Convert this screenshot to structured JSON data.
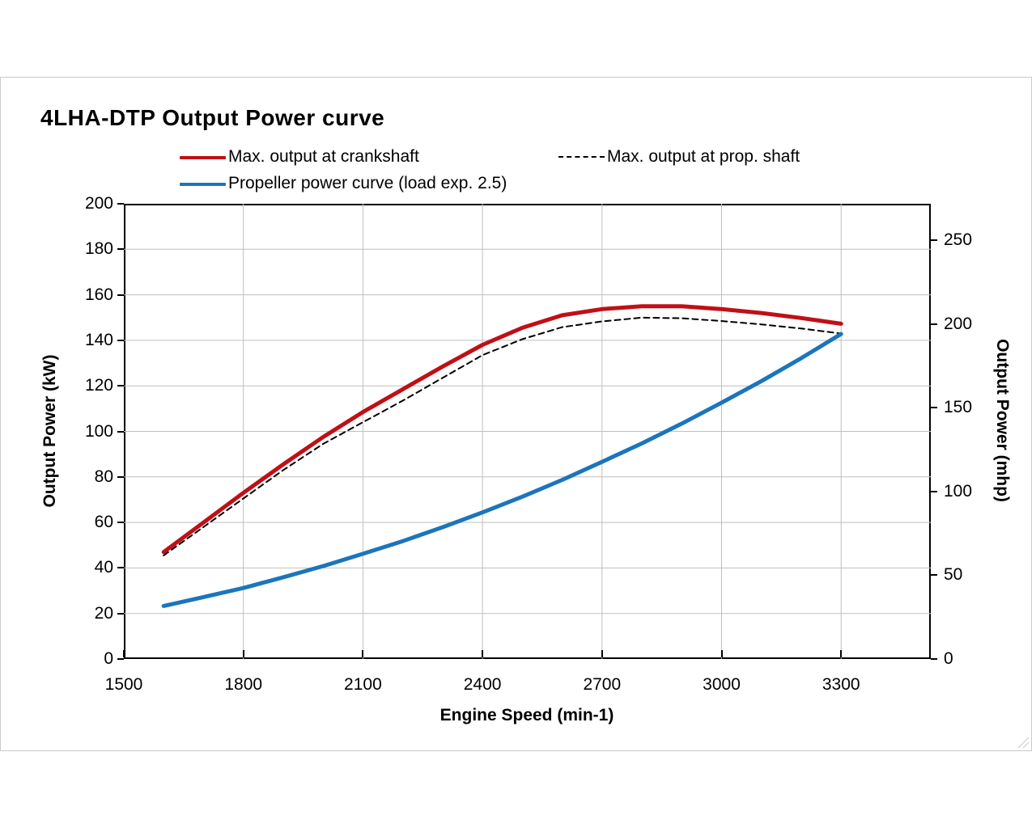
{
  "title": "4LHA-DTP Output Power curve",
  "colors": {
    "crankshaft_red": "#bf1016",
    "prop_shaft_black": "#000000",
    "propeller_blue": "#1b75bc",
    "grid_gray": "#bfbfbf",
    "panel_border": "#c9c9c9"
  },
  "legend": [
    {
      "label": "Max. output at crankshaft",
      "style": "solid",
      "color": "#bf1016"
    },
    {
      "label": "Max. output at prop. shaft",
      "style": "dashed",
      "color": "#000000"
    },
    {
      "label": "Propeller power curve (load exp. 2.5)",
      "style": "solid",
      "color": "#1b75bc"
    }
  ],
  "chart_data": {
    "type": "line",
    "title": "4LHA-DTP Output Power curve",
    "xlabel": "Engine Speed (min-1)",
    "ylabel_left": "Output Power (kW)",
    "ylabel_right": "Output Power (mhp)",
    "grid": true,
    "legend_position": "top",
    "x_range": [
      1500,
      3525
    ],
    "x_ticks": [
      1500,
      1800,
      2100,
      2400,
      2700,
      3000,
      3300
    ],
    "y_left_range": [
      0,
      200
    ],
    "y_left_ticks": [
      0,
      20,
      40,
      60,
      80,
      100,
      120,
      140,
      160,
      180,
      200
    ],
    "y_right_range": [
      0,
      271.9
    ],
    "y_right_ticks": [
      0,
      50,
      100,
      150,
      200,
      250
    ],
    "kw_to_mhp": 1.35962,
    "series": [
      {
        "name": "Max. output at crankshaft",
        "color": "#bf1016",
        "dash": null,
        "width": 5,
        "points": [
          [
            1600,
            47
          ],
          [
            1700,
            60
          ],
          [
            1800,
            73
          ],
          [
            1900,
            85.5
          ],
          [
            2000,
            97.5
          ],
          [
            2100,
            108.5
          ],
          [
            2200,
            118.5
          ],
          [
            2300,
            128.5
          ],
          [
            2400,
            138
          ],
          [
            2500,
            145.5
          ],
          [
            2600,
            151
          ],
          [
            2700,
            153.7
          ],
          [
            2800,
            155
          ],
          [
            2900,
            155
          ],
          [
            3000,
            153.7
          ],
          [
            3100,
            152
          ],
          [
            3200,
            149.8
          ],
          [
            3300,
            147.3
          ]
        ]
      },
      {
        "name": "Max. output at prop. shaft",
        "color": "#000000",
        "dash": "7 5",
        "width": 2,
        "points": [
          [
            1600,
            45.5
          ],
          [
            1700,
            58
          ],
          [
            1800,
            70.5
          ],
          [
            1900,
            83
          ],
          [
            2000,
            94.5
          ],
          [
            2100,
            104
          ],
          [
            2200,
            113.5
          ],
          [
            2300,
            123.5
          ],
          [
            2400,
            133.5
          ],
          [
            2500,
            140.5
          ],
          [
            2600,
            145.8
          ],
          [
            2700,
            148.3
          ],
          [
            2800,
            150
          ],
          [
            2900,
            149.7
          ],
          [
            3000,
            148.5
          ],
          [
            3100,
            147
          ],
          [
            3200,
            145.2
          ],
          [
            3300,
            143
          ]
        ]
      },
      {
        "name": "Propeller power curve (load exp. 2.5)",
        "color": "#1b75bc",
        "dash": null,
        "width": 5,
        "points": [
          [
            1600,
            23.3
          ],
          [
            1700,
            27.2
          ],
          [
            1800,
            31.2
          ],
          [
            1900,
            35.9
          ],
          [
            2000,
            40.8
          ],
          [
            2100,
            46.2
          ],
          [
            2200,
            51.8
          ],
          [
            2300,
            57.9
          ],
          [
            2400,
            64.4
          ],
          [
            2500,
            71.3
          ],
          [
            2600,
            78.7
          ],
          [
            2700,
            86.6
          ],
          [
            2800,
            94.7
          ],
          [
            2900,
            103.4
          ],
          [
            3000,
            112.6
          ],
          [
            3100,
            122.1
          ],
          [
            3200,
            132.2
          ],
          [
            3300,
            142.8
          ]
        ]
      }
    ]
  }
}
